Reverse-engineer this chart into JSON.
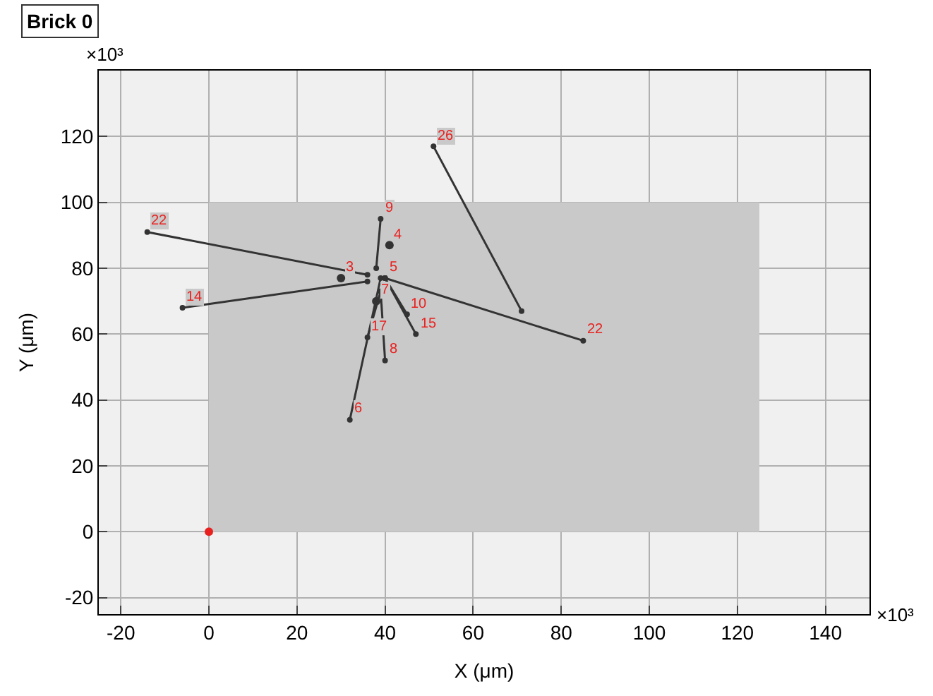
{
  "chart_data": {
    "type": "line",
    "title": "Brick 0",
    "xlabel": "X (μm)",
    "ylabel": "Y (μm)",
    "xlim": [
      -25,
      150
    ],
    "ylim": [
      -25,
      140
    ],
    "xticks": [
      -20,
      0,
      20,
      40,
      60,
      80,
      100,
      120,
      140
    ],
    "yticks": [
      -20,
      0,
      20,
      40,
      60,
      80,
      100,
      120
    ],
    "grid": true,
    "marker": "circle",
    "line_style": "solid",
    "series": [
      {
        "type": "area",
        "marker": "none",
        "color": "#c9c9c9",
        "x": [
          0,
          125
        ],
        "values": [
          100,
          100
        ]
      },
      {
        "color": "#333333",
        "x": [
          51,
          71
        ],
        "values": [
          117,
          67
        ]
      },
      {
        "color": "#333333",
        "x": [
          -14,
          36
        ],
        "values": [
          91,
          78
        ]
      },
      {
        "color": "#333333",
        "x": [
          -6,
          36
        ],
        "values": [
          68,
          76
        ]
      },
      {
        "color": "#333333",
        "x": [
          39,
          38
        ],
        "values": [
          95,
          80
        ]
      },
      {
        "color": "#333333",
        "x": [
          40,
          85
        ],
        "values": [
          77,
          58
        ]
      },
      {
        "color": "#333333",
        "x": [
          40,
          45
        ],
        "values": [
          77,
          66
        ]
      },
      {
        "color": "#333333",
        "x": [
          40,
          47
        ],
        "values": [
          77,
          60
        ]
      },
      {
        "color": "#333333",
        "x": [
          39,
          40
        ],
        "values": [
          73,
          52
        ]
      },
      {
        "color": "#333333",
        "x": [
          39,
          32
        ],
        "values": [
          77,
          34
        ]
      },
      {
        "color": "#333333",
        "x": [
          39,
          36
        ],
        "values": [
          73,
          59
        ]
      },
      {
        "type": "scatter",
        "color": "#333333",
        "x": [
          41,
          30,
          38
        ],
        "values": [
          87,
          77,
          70
        ]
      },
      {
        "type": "scatter",
        "color": "#e8211f",
        "x": [
          0
        ],
        "values": [
          0
        ]
      }
    ],
    "annotations": [
      "×10³",
      "×10³",
      {
        "text": "26",
        "x": 51,
        "y": 117
      },
      {
        "text": "22",
        "x": -14,
        "y": 91
      },
      {
        "text": "14",
        "x": -6,
        "y": 68
      },
      {
        "text": "9",
        "x": 39,
        "y": 95
      },
      {
        "text": "4",
        "x": 41,
        "y": 87
      },
      {
        "text": "3",
        "x": 30,
        "y": 77
      },
      {
        "text": "5",
        "x": 40,
        "y": 77
      },
      {
        "text": "7",
        "x": 38,
        "y": 70
      },
      {
        "text": "10",
        "x": 45,
        "y": 66
      },
      {
        "text": "15",
        "x": 47,
        "y": 60
      },
      {
        "text": "17",
        "x": 36,
        "y": 59
      },
      {
        "text": "8",
        "x": 40,
        "y": 52
      },
      {
        "text": "6",
        "x": 32,
        "y": 34
      },
      {
        "text": "22",
        "x": 85,
        "y": 58
      }
    ]
  }
}
